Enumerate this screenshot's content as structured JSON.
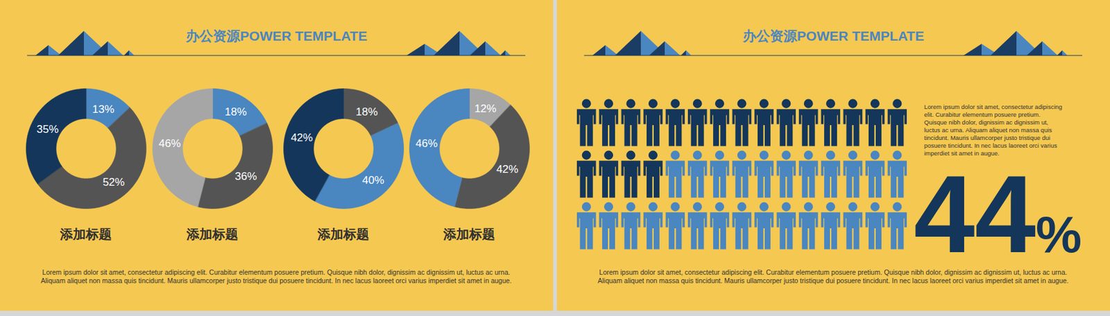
{
  "chart_data": [
    {
      "type": "donut",
      "title": "添加标题",
      "values": [
        13,
        52,
        35
      ],
      "value_labels": [
        "13%",
        "52%",
        "35%"
      ],
      "colors": [
        "#4a86c0",
        "#545454",
        "#14365a"
      ],
      "data_labels": true
    },
    {
      "type": "donut",
      "title": "添加标题",
      "values": [
        18,
        36,
        46
      ],
      "value_labels": [
        "18%",
        "36%",
        "46%"
      ],
      "colors": [
        "#4a86c0",
        "#545454",
        "#a6a6a6"
      ],
      "data_labels": true
    },
    {
      "type": "donut",
      "title": "添加标题",
      "values": [
        18,
        40,
        42
      ],
      "value_labels": [
        "18%",
        "40%",
        "42%"
      ],
      "colors": [
        "#545454",
        "#4a86c0",
        "#14365a"
      ],
      "data_labels": true
    },
    {
      "type": "donut",
      "title": "添加标题",
      "values": [
        12,
        42,
        46
      ],
      "value_labels": [
        "12%",
        "42%",
        "46%"
      ],
      "colors": [
        "#a6a6a6",
        "#545454",
        "#4a86c0"
      ],
      "data_labels": true
    },
    {
      "type": "pictogram",
      "values": [
        44
      ],
      "value_labels": [
        "44%"
      ],
      "icon_count": 45,
      "colors": [
        "#14365a",
        "#4a86c0"
      ],
      "data_labels": true,
      "annotation": "Lorem ipsum dolor sit amet, consectetur adipiscing elit. Curabitur elementum posuere pretium. Quisque nibh dolor, dignissim ac dignissim ut, luctus ac urna. Aliquam aliquet non massa quis tincidunt. Mauris ullamcorper justo tristique dui posuere tincidunt. In nec lacus laoreet orci varius imperdiet sit amet in augue."
    }
  ],
  "slides": [
    {
      "header": "办公资源POWER TEMPLATE",
      "caption": "Lorem ipsum dolor sit amet, consectetur adipiscing elit. Curabitur elementum posuere pretium. Quisque nibh dolor, dignissim ac dignissim ut, luctus ac urna. Aliquam aliquet non massa quis tincidunt. Mauris ullamcorper justo tristique dui posuere tincidunt. In nec lacus laoreet orci varius imperdiet sit amet in augue."
    },
    {
      "header": "办公资源POWER TEMPLATE",
      "caption": "Lorem ipsum dolor sit amet, consectetur adipiscing elit. Curabitur elementum posuere pretium. Quisque nibh dolor, dignissim ac dignissim ut, luctus ac urna. Aliquam aliquet non massa quis tincidunt. Mauris ullamcorper justo tristique dui posuere tincidunt. In nec lacus laoreet orci varius imperdiet sit amet in augue."
    }
  ]
}
